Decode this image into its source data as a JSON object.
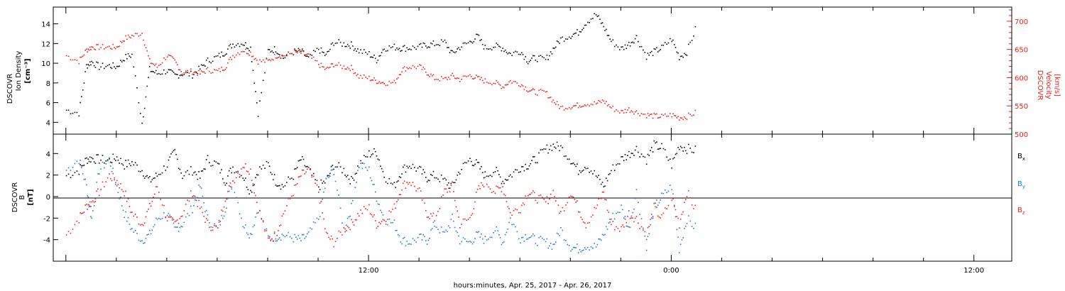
{
  "colors": {
    "black": "#000000",
    "red": "#e8201c",
    "blue": "#1a7ad6"
  },
  "xaxis": {
    "label": "hours:minutes, Apr. 25, 2017 - Apr. 26, 2017",
    "range_hours": [
      -0.5,
      37.5
    ],
    "tick_labels": [
      {
        "hour": 12,
        "label": "12:00"
      },
      {
        "hour": 24,
        "label": "0:00"
      },
      {
        "hour": 36,
        "label": "12:00"
      }
    ],
    "data_end_hour": 25.0
  },
  "chart_data": [
    {
      "type": "scatter",
      "title": "",
      "left_axis": {
        "label_lines": [
          "DSCOVR",
          "Ion Density"
        ],
        "units": "[cm⁻³]",
        "range": [
          2.8,
          15.7
        ],
        "ticks": [
          4,
          6,
          8,
          10,
          12,
          14
        ],
        "color": "#000000"
      },
      "right_axis": {
        "label_lines": [
          "DSCOVR",
          "Velocity"
        ],
        "units": "[km/s]",
        "range": [
          500,
          725
        ],
        "ticks": [
          500,
          550,
          600,
          650,
          700
        ],
        "color": "#e8201c"
      },
      "series": [
        {
          "key": "density",
          "color": "#000000",
          "axis": "left",
          "x": [
            0.0,
            0.5,
            0.8,
            1.0,
            1.3,
            1.7,
            2.0,
            2.3,
            2.6,
            3.0,
            3.3,
            3.6,
            4.0,
            4.3,
            4.6,
            5.0,
            5.3,
            5.6,
            6.0,
            6.3,
            6.6,
            7.0,
            7.3,
            7.6,
            8.0,
            8.3,
            8.6,
            9.0,
            9.3,
            9.6,
            10.0,
            10.3,
            10.6,
            11.0,
            11.3,
            11.6,
            12.0,
            12.3,
            12.6,
            13.0,
            13.3,
            13.6,
            14.0,
            14.3,
            14.6,
            15.0,
            15.3,
            15.6,
            16.0,
            16.3,
            16.6,
            17.0,
            17.3,
            17.6,
            18.0,
            18.3,
            18.6,
            19.0,
            19.3,
            19.6,
            20.0,
            20.3,
            20.6,
            21.0,
            21.3,
            21.6,
            22.0,
            22.3,
            22.6,
            23.0,
            23.3,
            23.6,
            24.0,
            24.3,
            24.6,
            25.0
          ],
          "y": [
            5.3,
            5.0,
            9.8,
            10.2,
            9.7,
            9.8,
            9.7,
            10.6,
            10.9,
            4.0,
            9.4,
            9.0,
            9.3,
            8.8,
            9.0,
            8.9,
            9.5,
            10.3,
            10.7,
            11.2,
            12.0,
            12.1,
            11.6,
            5.0,
            11.3,
            11.5,
            10.6,
            11.2,
            11.3,
            10.5,
            11.5,
            10.8,
            12.2,
            12.0,
            11.9,
            11.3,
            11.0,
            10.4,
            11.6,
            11.7,
            11.6,
            11.6,
            11.7,
            11.9,
            12.0,
            12.2,
            11.0,
            11.7,
            12.2,
            12.8,
            11.6,
            11.8,
            11.6,
            11.0,
            11.3,
            10.3,
            10.6,
            10.4,
            11.5,
            12.5,
            12.9,
            13.2,
            14.2,
            15.0,
            13.8,
            12.3,
            11.5,
            12.0,
            12.7,
            10.8,
            11.2,
            11.6,
            12.5,
            10.7,
            11.2,
            13.9
          ]
        },
        {
          "key": "velocity",
          "color": "#e8201c",
          "axis": "right",
          "x": [
            0.0,
            0.5,
            0.8,
            1.0,
            1.3,
            1.7,
            2.0,
            2.3,
            2.6,
            3.0,
            3.3,
            3.6,
            4.0,
            4.3,
            4.6,
            5.0,
            5.3,
            5.6,
            6.0,
            6.3,
            6.6,
            7.0,
            7.3,
            7.6,
            8.0,
            8.3,
            8.6,
            9.0,
            9.3,
            9.6,
            10.0,
            10.3,
            10.6,
            11.0,
            11.3,
            11.6,
            12.0,
            12.3,
            12.6,
            13.0,
            13.3,
            13.6,
            14.0,
            14.3,
            14.6,
            15.0,
            15.3,
            15.6,
            16.0,
            16.3,
            16.6,
            17.0,
            17.3,
            17.6,
            18.0,
            18.3,
            18.6,
            19.0,
            19.3,
            19.6,
            20.0,
            20.3,
            20.6,
            21.0,
            21.3,
            21.6,
            22.0,
            22.3,
            22.6,
            23.0,
            23.3,
            23.6,
            24.0,
            24.3,
            24.6,
            25.0
          ],
          "y": [
            640,
            630,
            650,
            655,
            655,
            655,
            655,
            670,
            675,
            680,
            630,
            620,
            640,
            630,
            610,
            612,
            608,
            615,
            612,
            620,
            640,
            650,
            645,
            630,
            630,
            640,
            640,
            645,
            645,
            640,
            625,
            615,
            625,
            620,
            618,
            603,
            600,
            595,
            592,
            592,
            615,
            620,
            620,
            610,
            600,
            598,
            604,
            598,
            605,
            600,
            595,
            592,
            585,
            595,
            590,
            580,
            575,
            575,
            560,
            548,
            550,
            552,
            555,
            555,
            560,
            548,
            540,
            545,
            540,
            535,
            533,
            532,
            535,
            530,
            532,
            540
          ]
        }
      ]
    },
    {
      "type": "scatter",
      "title": "",
      "left_axis": {
        "label_lines": [
          "DSCOVR",
          "B"
        ],
        "units": "[nT]",
        "range": [
          -6.0,
          5.8
        ],
        "ticks": [
          -4,
          -2,
          0,
          2,
          4
        ],
        "color": "#000000"
      },
      "zero_line": true,
      "legend_placement": "right",
      "series": [
        {
          "name": "B",
          "subscript": "x",
          "color": "#000000",
          "x": [
            0.0,
            0.5,
            0.8,
            1.0,
            1.3,
            1.7,
            2.0,
            2.3,
            2.6,
            3.0,
            3.3,
            3.6,
            4.0,
            4.3,
            4.6,
            5.0,
            5.3,
            5.6,
            6.0,
            6.3,
            6.6,
            7.0,
            7.3,
            7.6,
            8.0,
            8.3,
            8.6,
            9.0,
            9.3,
            9.6,
            10.0,
            10.3,
            10.6,
            11.0,
            11.3,
            11.6,
            12.0,
            12.3,
            12.6,
            13.0,
            13.3,
            13.6,
            14.0,
            14.3,
            14.6,
            15.0,
            15.3,
            15.6,
            16.0,
            16.3,
            16.6,
            17.0,
            17.3,
            17.6,
            18.0,
            18.3,
            18.6,
            19.0,
            19.3,
            19.6,
            20.0,
            20.3,
            20.6,
            21.0,
            21.3,
            21.6,
            22.0,
            22.3,
            22.6,
            23.0,
            23.3,
            23.6,
            24.0,
            24.3,
            24.6,
            25.0
          ],
          "y": [
            2.0,
            2.5,
            3.5,
            3.6,
            3.5,
            3.4,
            3.7,
            3.0,
            3.2,
            2.5,
            1.5,
            2.0,
            3.0,
            4.2,
            2.0,
            2.5,
            1.8,
            3.5,
            3.0,
            1.5,
            2.8,
            2.0,
            0.5,
            2.5,
            3.0,
            1.5,
            1.0,
            2.0,
            3.5,
            2.5,
            1.0,
            1.5,
            3.0,
            2.5,
            1.5,
            3.0,
            4.0,
            4.2,
            2.0,
            1.0,
            2.5,
            3.0,
            2.5,
            1.8,
            2.0,
            1.5,
            1.0,
            2.5,
            3.5,
            3.0,
            2.0,
            2.5,
            1.5,
            2.0,
            2.8,
            3.0,
            3.5,
            4.4,
            4.8,
            4.6,
            3.5,
            2.5,
            3.0,
            2.0,
            1.0,
            2.5,
            3.5,
            4.0,
            4.5,
            3.5,
            4.8,
            4.6,
            3.0,
            4.8,
            4.5,
            4.3
          ]
        },
        {
          "name": "B",
          "subscript": "y",
          "color": "#1a7ad6",
          "x": [
            0.0,
            0.5,
            0.8,
            1.0,
            1.3,
            1.7,
            2.0,
            2.3,
            2.6,
            3.0,
            3.3,
            3.6,
            4.0,
            4.3,
            4.6,
            5.0,
            5.3,
            5.6,
            6.0,
            6.3,
            6.6,
            7.0,
            7.3,
            7.6,
            8.0,
            8.3,
            8.6,
            9.0,
            9.3,
            9.6,
            10.0,
            10.3,
            10.6,
            11.0,
            11.3,
            11.6,
            12.0,
            12.3,
            12.6,
            13.0,
            13.3,
            13.6,
            14.0,
            14.3,
            14.6,
            15.0,
            15.3,
            15.6,
            16.0,
            16.3,
            16.6,
            17.0,
            17.3,
            17.6,
            18.0,
            18.3,
            18.6,
            19.0,
            19.3,
            19.6,
            20.0,
            20.3,
            20.6,
            21.0,
            21.3,
            21.6,
            22.0,
            22.3,
            22.6,
            23.0,
            23.3,
            23.6,
            24.0,
            24.3,
            24.6,
            25.0
          ],
          "y": [
            2.5,
            3.5,
            1.0,
            -2.0,
            2.5,
            3.5,
            1.0,
            -1.5,
            -3.0,
            -4.0,
            -3.5,
            -2.0,
            -1.5,
            -3.0,
            -2.5,
            -1.0,
            1.0,
            -2.0,
            -3.0,
            -1.0,
            1.5,
            -2.5,
            -3.5,
            -1.0,
            -3.8,
            -3.7,
            -3.5,
            -3.8,
            -4.0,
            -3.5,
            -2.0,
            1.5,
            2.5,
            -3.0,
            -1.0,
            3.0,
            2.5,
            0.0,
            -2.0,
            -2.5,
            -4.0,
            -4.2,
            -3.8,
            -4.0,
            -2.5,
            -3.5,
            -2.0,
            -4.0,
            -4.2,
            -3.5,
            -4.0,
            -3.0,
            -4.2,
            -2.0,
            -3.8,
            -3.5,
            -4.0,
            -4.2,
            -4.5,
            -3.0,
            -4.6,
            -4.8,
            -4.5,
            -4.6,
            -3.5,
            -2.0,
            -1.0,
            -3.0,
            0.5,
            -4.5,
            -1.0,
            0.0,
            1.0,
            -4.8,
            -2.0,
            -3.0
          ]
        },
        {
          "name": "B",
          "subscript": "z",
          "color": "#e8201c",
          "x": [
            0.0,
            0.5,
            0.8,
            1.0,
            1.3,
            1.7,
            2.0,
            2.3,
            2.6,
            3.0,
            3.3,
            3.6,
            4.0,
            4.3,
            4.6,
            5.0,
            5.3,
            5.6,
            6.0,
            6.3,
            6.6,
            7.0,
            7.3,
            7.6,
            8.0,
            8.3,
            8.6,
            9.0,
            9.3,
            9.6,
            10.0,
            10.3,
            10.6,
            11.0,
            11.3,
            11.6,
            12.0,
            12.3,
            12.6,
            13.0,
            13.3,
            13.6,
            14.0,
            14.3,
            14.6,
            15.0,
            15.3,
            15.6,
            16.0,
            16.3,
            16.6,
            17.0,
            17.3,
            17.6,
            18.0,
            18.3,
            18.6,
            19.0,
            19.3,
            19.6,
            20.0,
            20.3,
            20.6,
            21.0,
            21.3,
            21.6,
            22.0,
            22.3,
            22.6,
            23.0,
            23.3,
            23.6,
            24.0,
            24.3,
            24.6,
            25.0
          ],
          "y": [
            -3.5,
            -2.0,
            -0.8,
            -0.5,
            0.5,
            2.0,
            1.5,
            0.5,
            -1.5,
            -2.5,
            -1.0,
            1.0,
            -2.0,
            -2.5,
            -1.5,
            0.5,
            -1.0,
            -2.5,
            -3.0,
            0.0,
            1.5,
            3.0,
            2.5,
            -1.0,
            -4.0,
            -3.5,
            -1.5,
            0.5,
            2.0,
            2.5,
            0.5,
            -3.5,
            -4.2,
            -3.0,
            -2.5,
            -1.5,
            -1.0,
            -2.5,
            -2.0,
            -1.0,
            1.0,
            1.5,
            0.5,
            -1.5,
            -2.0,
            0.5,
            1.0,
            -2.5,
            -2.0,
            0.5,
            1.5,
            0.5,
            1.0,
            -1.5,
            -1.0,
            0.5,
            0.0,
            -0.5,
            0.5,
            -1.5,
            0.5,
            -1.0,
            -2.5,
            -1.0,
            0.5,
            -2.5,
            -3.0,
            -1.5,
            -2.0,
            -3.5,
            -1.0,
            -2.0,
            0.0,
            -2.5,
            0.5,
            -1.5
          ]
        }
      ]
    }
  ]
}
